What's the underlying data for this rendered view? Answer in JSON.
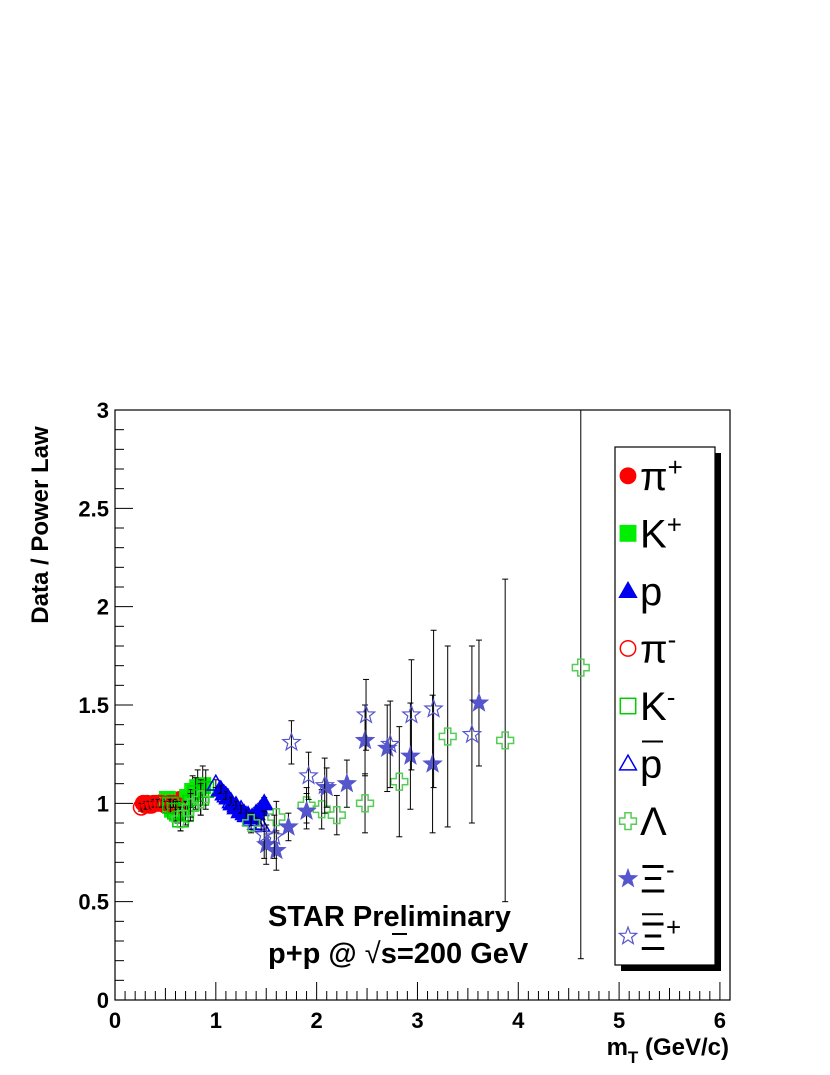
{
  "chart_data": {
    "type": "scatter",
    "title": "",
    "xlabel": "m",
    "xlabel_sub": "T",
    "xlabel_unit": " (GeV/c)",
    "ylabel": "Data / Power Law",
    "xlim": [
      0,
      6.1
    ],
    "ylim": [
      0,
      3
    ],
    "x_ticks": [
      "0",
      "1",
      "2",
      "3",
      "4",
      "5",
      "6"
    ],
    "y_ticks": [
      "0",
      "0.5",
      "1",
      "1.5",
      "2",
      "2.5",
      "3"
    ],
    "grid": false,
    "legend_position": "right",
    "annotation": {
      "line1": "STAR Preliminary",
      "line2_pre": "p+p @ ",
      "line2_root": "√",
      "line2_s": "s",
      "line2_post": "=200 GeV"
    },
    "series": [
      {
        "name": "π",
        "sup": "+",
        "marker": "circle",
        "filled": true,
        "color": "#ff0000",
        "x": [
          0.28,
          0.32,
          0.36,
          0.4,
          0.44,
          0.48,
          0.52,
          0.56,
          0.6,
          0.64,
          0.68
        ],
        "y": [
          1.0,
          1.0,
          0.99,
          1.0,
          1.0,
          1.01,
          1.0,
          1.0,
          1.01,
          1.02,
          1.01
        ],
        "err": [
          0.02,
          0.02,
          0.02,
          0.02,
          0.02,
          0.02,
          0.02,
          0.02,
          0.02,
          0.02,
          0.02
        ]
      },
      {
        "name": "K",
        "sup": "+",
        "marker": "square",
        "filled": true,
        "color": "#00ee00",
        "x": [
          0.52,
          0.57,
          0.62,
          0.67,
          0.72,
          0.77,
          0.82,
          0.87
        ],
        "y": [
          1.02,
          0.97,
          0.95,
          0.97,
          1.03,
          1.06,
          1.08,
          1.09
        ],
        "err": [
          0.04,
          0.05,
          0.05,
          0.06,
          0.07,
          0.08,
          0.09,
          0.1
        ]
      },
      {
        "name": "p",
        "sup": "",
        "marker": "triangle",
        "filled": true,
        "color": "#0000ee",
        "x": [
          1.04,
          1.08,
          1.12,
          1.16,
          1.2,
          1.24,
          1.28,
          1.32,
          1.36,
          1.4,
          1.44,
          1.48
        ],
        "y": [
          1.07,
          1.05,
          1.03,
          1.0,
          0.98,
          0.96,
          0.95,
          0.94,
          0.93,
          0.95,
          0.97,
          1.0
        ],
        "err": [
          0.02,
          0.02,
          0.02,
          0.02,
          0.02,
          0.02,
          0.02,
          0.02,
          0.02,
          0.03,
          0.03,
          0.03
        ]
      },
      {
        "name": "π",
        "sup": "-",
        "marker": "circle",
        "filled": false,
        "color": "#ff0000",
        "x": [
          0.26,
          0.3,
          0.34,
          0.38,
          0.42,
          0.46,
          0.5,
          0.54,
          0.58,
          0.62
        ],
        "y": [
          0.98,
          0.99,
          0.99,
          1.0,
          1.0,
          1.0,
          0.99,
          1.0,
          1.0,
          0.99
        ],
        "err": [
          0.02,
          0.02,
          0.02,
          0.02,
          0.02,
          0.02,
          0.02,
          0.02,
          0.02,
          0.02
        ]
      },
      {
        "name": "K",
        "sup": "-",
        "marker": "square",
        "filled": false,
        "color": "#00cc00",
        "x": [
          0.55,
          0.6,
          0.65,
          0.7,
          0.75,
          0.8,
          0.85,
          0.9
        ],
        "y": [
          0.99,
          0.96,
          0.92,
          0.95,
          1.0,
          1.05,
          1.03,
          1.07
        ],
        "err": [
          0.04,
          0.05,
          0.06,
          0.06,
          0.07,
          0.08,
          0.09,
          0.1
        ]
      },
      {
        "name": "p",
        "sup": "",
        "overline": true,
        "marker": "triangle",
        "filled": false,
        "color": "#0000ee",
        "x": [
          1.0,
          1.05,
          1.1,
          1.15,
          1.2,
          1.25,
          1.3,
          1.35,
          1.4,
          1.45
        ],
        "y": [
          1.1,
          1.07,
          1.04,
          1.01,
          0.99,
          0.97,
          0.94,
          0.92,
          0.9,
          0.89
        ],
        "err": [
          0.02,
          0.02,
          0.02,
          0.02,
          0.02,
          0.02,
          0.03,
          0.03,
          0.03,
          0.03
        ]
      },
      {
        "name": "Λ",
        "sup": "",
        "marker": "cross",
        "filled": false,
        "color": "#55cc55",
        "x": [
          0.65,
          0.75,
          0.85,
          1.35,
          1.6,
          1.9,
          2.05,
          2.2,
          2.48,
          2.82,
          3.3,
          3.87,
          4.62
        ],
        "y": [
          0.92,
          0.98,
          1.02,
          0.9,
          0.93,
          0.99,
          0.97,
          0.94,
          1.0,
          1.11,
          1.34,
          1.32,
          1.69
        ],
        "err": [
          0.06,
          0.07,
          0.08,
          0.05,
          0.08,
          0.09,
          0.1,
          0.1,
          0.15,
          0.28,
          0.46,
          0.82,
          1.48
        ]
      },
      {
        "name": "Ξ",
        "sup": "-",
        "marker": "star",
        "filled": true,
        "color": "#5555cc",
        "x": [
          1.5,
          1.6,
          1.72,
          1.9,
          2.1,
          2.3,
          2.48,
          2.7,
          2.93,
          3.15,
          3.61
        ],
        "y": [
          0.79,
          0.76,
          0.88,
          0.96,
          1.08,
          1.1,
          1.32,
          1.28,
          1.24,
          1.2,
          1.51
        ],
        "err": [
          0.1,
          0.1,
          0.07,
          0.09,
          0.1,
          0.12,
          0.18,
          0.22,
          0.27,
          0.35,
          0.32
        ]
      },
      {
        "name": "Ξ",
        "sup": "+",
        "overline": true,
        "marker": "star",
        "filled": false,
        "color": "#5555cc",
        "x": [
          1.48,
          1.58,
          1.75,
          1.92,
          2.08,
          2.49,
          2.73,
          2.94,
          3.16,
          3.54
        ],
        "y": [
          0.84,
          0.83,
          1.31,
          1.14,
          1.09,
          1.45,
          1.3,
          1.45,
          1.48,
          1.35
        ],
        "err": [
          0.12,
          0.11,
          0.11,
          0.12,
          0.14,
          0.18,
          0.22,
          0.28,
          0.4,
          0.45
        ]
      }
    ]
  }
}
